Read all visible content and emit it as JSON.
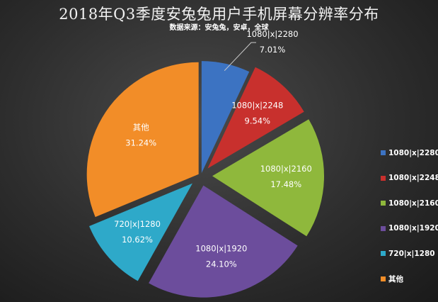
{
  "chart_data": {
    "type": "pie",
    "title": "2018年Q3季度安兔兔用户手机屏幕分辨率分布",
    "subtitle": "数据来源：安兔兔，安卓，全球",
    "legend_position": "right",
    "slices": [
      {
        "label": "1080|x|2280",
        "value": 7.01,
        "display": "7.01%",
        "color": "#3c73c2"
      },
      {
        "label": "1080|x|2248",
        "value": 9.54,
        "display": "9.54%",
        "color": "#c8302d"
      },
      {
        "label": "1080|x|2160",
        "value": 17.48,
        "display": "17.48%",
        "color": "#8fb83c"
      },
      {
        "label": "1080|x|1920",
        "value": 24.1,
        "display": "24.10%",
        "color": "#6c4d9c"
      },
      {
        "label": "720|x|1280",
        "value": 10.62,
        "display": "10.62%",
        "color": "#2ea9c9"
      },
      {
        "label": "其他",
        "value": 31.24,
        "display": "31.24%",
        "color": "#f28d28"
      }
    ]
  }
}
